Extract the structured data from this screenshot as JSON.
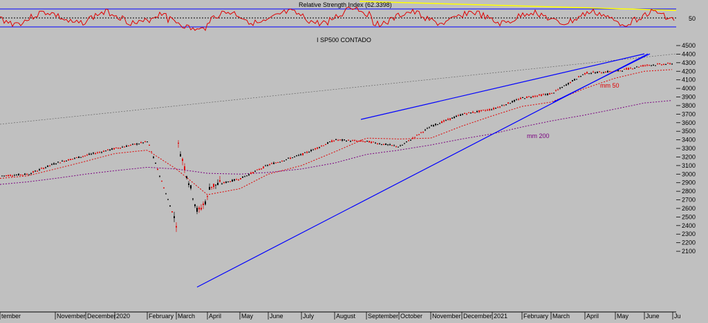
{
  "rsi_panel": {
    "title": "Relative Strength Index (62.3398)",
    "level_label": "50"
  },
  "price_panel": {
    "title": "I SP500 CONTADO",
    "annotations": {
      "mm50": "mm 50",
      "mm200": "mm 200"
    },
    "y_ticks": [
      "4500",
      "4400",
      "4300",
      "4200",
      "4100",
      "4000",
      "3900",
      "3800",
      "3700",
      "3600",
      "3500",
      "3400",
      "3300",
      "3200",
      "3100",
      "3000",
      "2900",
      "2800",
      "2700",
      "2600",
      "2500",
      "2400",
      "2300",
      "2200",
      "2100"
    ],
    "x_ticks": [
      "tember",
      "November",
      "December",
      "2020",
      "February",
      "March",
      "April",
      "May",
      "June",
      "July",
      "August",
      "September",
      "October",
      "November",
      "December",
      "2021",
      "February",
      "March",
      "April",
      "May",
      "June",
      "Ju"
    ]
  },
  "chart_data": {
    "type": "candlestick",
    "title": "I SP500 CONTADO",
    "ylim": [
      2100,
      4500
    ],
    "series": [
      {
        "name": "price",
        "x": [
          "2019-09",
          "2019-10",
          "2019-11",
          "2019-12",
          "2020-01",
          "2020-02",
          "2020-03",
          "2020-04",
          "2020-05",
          "2020-06",
          "2020-07",
          "2020-08",
          "2020-09",
          "2020-10",
          "2020-11",
          "2020-12",
          "2021-01",
          "2021-02",
          "2021-03",
          "2021-04",
          "2021-05",
          "2021-06",
          "2021-07"
        ],
        "values": [
          2980,
          3000,
          3130,
          3220,
          3300,
          3380,
          2400,
          2850,
          2950,
          3110,
          3230,
          3400,
          3380,
          3320,
          3560,
          3700,
          3760,
          3890,
          3940,
          4180,
          4200,
          4270,
          4290
        ]
      },
      {
        "name": "mm 50",
        "values": [
          2950,
          2980,
          3060,
          3150,
          3240,
          3280,
          3060,
          2760,
          2830,
          3000,
          3100,
          3260,
          3420,
          3410,
          3420,
          3560,
          3680,
          3790,
          3840,
          4000,
          4120,
          4200,
          4220
        ]
      },
      {
        "name": "mm 200",
        "values": [
          2880,
          2910,
          2950,
          3000,
          3040,
          3080,
          3060,
          3010,
          3000,
          3020,
          3060,
          3130,
          3230,
          3280,
          3340,
          3410,
          3470,
          3550,
          3620,
          3690,
          3760,
          3830,
          3860
        ]
      }
    ],
    "rsi": {
      "name": "Relative Strength Index",
      "value": 62.3398,
      "level": 50
    }
  }
}
